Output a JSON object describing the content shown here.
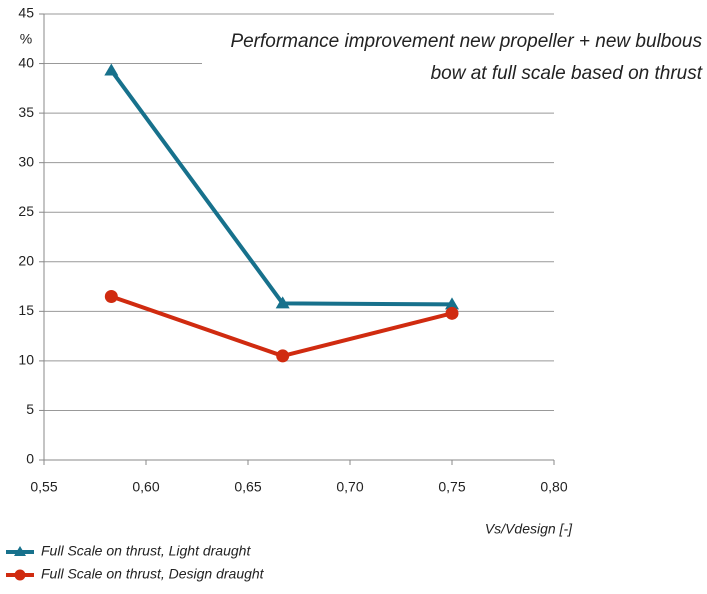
{
  "chart_data": {
    "type": "line",
    "title": "Performance improvement new propeller + new bulbous bow at full scale based on thrust",
    "y_label": "%",
    "x_label": "Vs/Vdesign [-]",
    "x": [
      0.583,
      0.667,
      0.75
    ],
    "series": [
      {
        "name": "Full Scale on thrust, Light draught",
        "color": "#17718c",
        "marker": "triangle",
        "values": [
          39.3,
          15.8,
          15.7
        ]
      },
      {
        "name": "Full Scale on thrust, Design draught",
        "color": "#d02b10",
        "marker": "circle",
        "values": [
          16.5,
          10.5,
          14.8
        ]
      }
    ],
    "xlim": [
      0.55,
      0.8
    ],
    "xticks": [
      {
        "value": 0.55,
        "label": "0,55"
      },
      {
        "value": 0.6,
        "label": "0,60"
      },
      {
        "value": 0.65,
        "label": "0,65"
      },
      {
        "value": 0.7,
        "label": "0,70"
      },
      {
        "value": 0.75,
        "label": "0,75"
      },
      {
        "value": 0.8,
        "label": "0,80"
      }
    ],
    "ylim": [
      0,
      45
    ],
    "yticks": [
      0,
      5,
      10,
      15,
      20,
      25,
      30,
      35,
      40,
      45
    ],
    "grid": true
  }
}
